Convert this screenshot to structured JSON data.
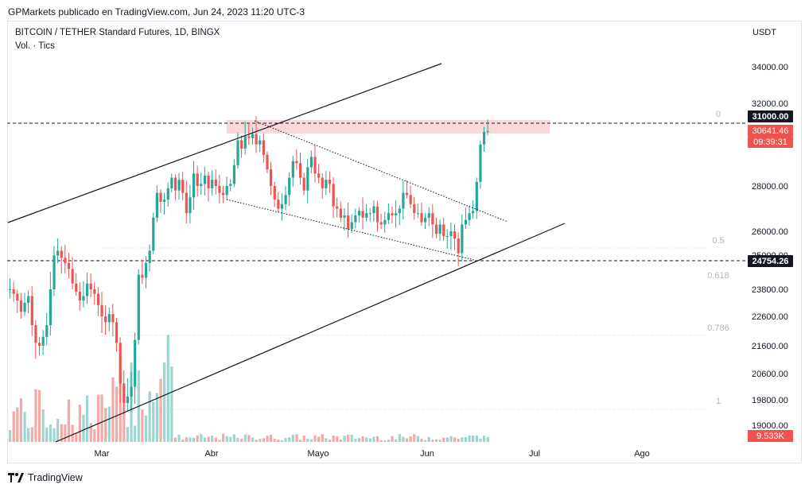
{
  "header": {
    "publisher": "GPMarkets publicado en TradingView.com, Jun 24, 2023 11:20 UTC-3"
  },
  "legend": {
    "symbol": "BITCOIN / TETHER Standard Futures, 1D, BINGX",
    "volume": "Vol. · Tics"
  },
  "footer": {
    "brand": "TradingView"
  },
  "colors": {
    "up": "#26a69a",
    "down": "#ef5350",
    "volUp": "#9dd6d0",
    "volDown": "#f4a9a7",
    "zone": "#f8c9cf"
  },
  "chart_data": {
    "type": "candlestick",
    "currency": "USDT",
    "y_ticks": [
      "34000.00",
      "32000.00",
      "28000.00",
      "26000.00",
      "25000.00",
      "23800.00",
      "22600.00",
      "21600.00",
      "20600.00",
      "19800.00",
      "19000.00"
    ],
    "x_ticks": [
      "Mar",
      "Abr",
      "Mayo",
      "Jun",
      "Jul",
      "Ago"
    ],
    "price_labels": {
      "resistance": "31000.00",
      "last": "30641.46",
      "countdown": "09:39:31",
      "support": "24754.26",
      "volume": "9.533K"
    },
    "fib_labels": [
      "0",
      "0.5",
      "0.618",
      "0.786",
      "1"
    ],
    "first_close": 23800,
    "closes": [
      23800,
      23600,
      23300,
      22800,
      23200,
      23500,
      22300,
      21700,
      21600,
      21900,
      22300,
      23800,
      25000,
      25200,
      24900,
      24700,
      24500,
      24000,
      23700,
      23300,
      23500,
      24000,
      23800,
      23600,
      23100,
      22600,
      22400,
      22700,
      22400,
      21700,
      20300,
      19700,
      19900,
      20200,
      21800,
      24300,
      24200,
      24700,
      25200,
      26600,
      27700,
      27300,
      27400,
      27900,
      28400,
      27800,
      28300,
      27700,
      26800,
      27500,
      28600,
      28000,
      28100,
      28500,
      27900,
      28300,
      28000,
      27700,
      27600,
      28000,
      28100,
      29000,
      30200,
      29800,
      30400,
      30300,
      30500,
      30000,
      30200,
      29500,
      28800,
      28000,
      27400,
      27000,
      27200,
      27600,
      28400,
      29200,
      29100,
      28400,
      27800,
      28900,
      29400,
      28600,
      28400,
      27900,
      28300,
      28100,
      27100,
      27000,
      26600,
      26700,
      26100,
      26400,
      26700,
      26900,
      26600,
      26800,
      26800,
      27100,
      26400,
      26300,
      26500,
      26800,
      26700,
      26800,
      27000,
      27700,
      27600,
      27200,
      26800,
      26800,
      26400,
      26600,
      26800,
      26300,
      25900,
      26300,
      25800,
      25800,
      26000,
      25700,
      25100,
      26300,
      26500,
      26800,
      26900,
      28200,
      30000,
      30600,
      30641
    ]
  }
}
